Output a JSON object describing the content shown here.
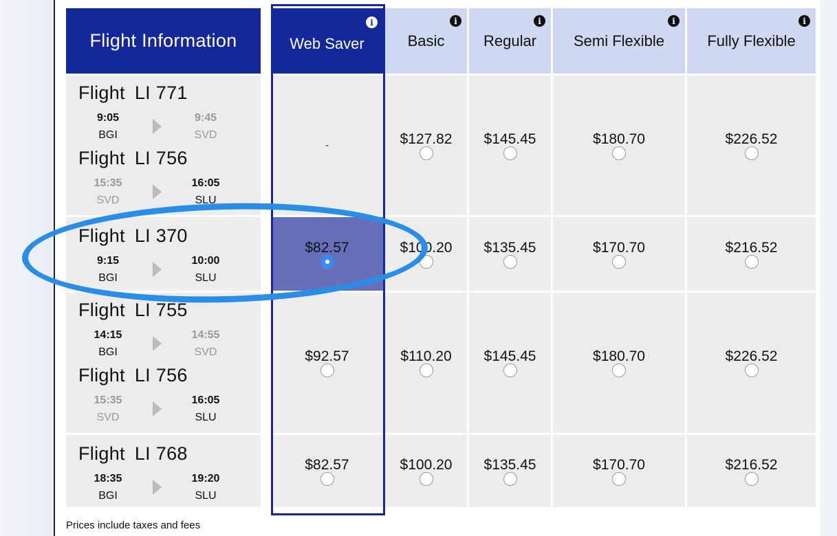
{
  "header": {
    "flight_info": "Flight Information",
    "fares": [
      {
        "label": "Web Saver",
        "info": "i"
      },
      {
        "label": "Basic",
        "info": "i"
      },
      {
        "label": "Regular",
        "info": "i"
      },
      {
        "label": "Semi Flexible",
        "info": "i"
      },
      {
        "label": "Fully Flexible",
        "info": "i"
      }
    ]
  },
  "flight_word": "Flight",
  "rows": [
    {
      "segments": [
        {
          "number": "LI 771",
          "dep_time": "9:05",
          "dep_code": "BGI",
          "arr_time": "9:45",
          "arr_code": "SVD"
        },
        {
          "number": "LI 756",
          "dep_time": "15:35",
          "dep_code": "SVD",
          "arr_time": "16:05",
          "arr_code": "SLU"
        }
      ],
      "prices": [
        "-",
        "$127.82",
        "$145.45",
        "$180.70",
        "$226.52"
      ]
    },
    {
      "segments": [
        {
          "number": "LI 370",
          "dep_time": "9:15",
          "dep_code": "BGI",
          "arr_time": "10:00",
          "arr_code": "SLU"
        }
      ],
      "prices": [
        "$82.57",
        "$100.20",
        "$135.45",
        "$170.70",
        "$216.52"
      ]
    },
    {
      "segments": [
        {
          "number": "LI 755",
          "dep_time": "14:15",
          "dep_code": "BGI",
          "arr_time": "14:55",
          "arr_code": "SVD"
        },
        {
          "number": "LI 756",
          "dep_time": "15:35",
          "dep_code": "SVD",
          "arr_time": "16:05",
          "arr_code": "SLU"
        }
      ],
      "prices": [
        "$92.57",
        "$110.20",
        "$145.45",
        "$180.70",
        "$226.52"
      ]
    },
    {
      "segments": [
        {
          "number": "LI 768",
          "dep_time": "18:35",
          "dep_code": "BGI",
          "arr_time": "19:20",
          "arr_code": "SLU"
        }
      ],
      "prices": [
        "$82.57",
        "$100.20",
        "$135.45",
        "$170.70",
        "$216.52"
      ]
    }
  ],
  "footnote": "Prices include taxes and fees",
  "colors": {
    "header_dark": "#15289a",
    "header_light": "#cfd8f1",
    "selected_cell": "#6670b9",
    "annotation": "#2b8ee6",
    "radio_selected": "#3a8cf3"
  },
  "icons": {
    "info": "info-icon",
    "arrow": "play-arrow-icon"
  }
}
